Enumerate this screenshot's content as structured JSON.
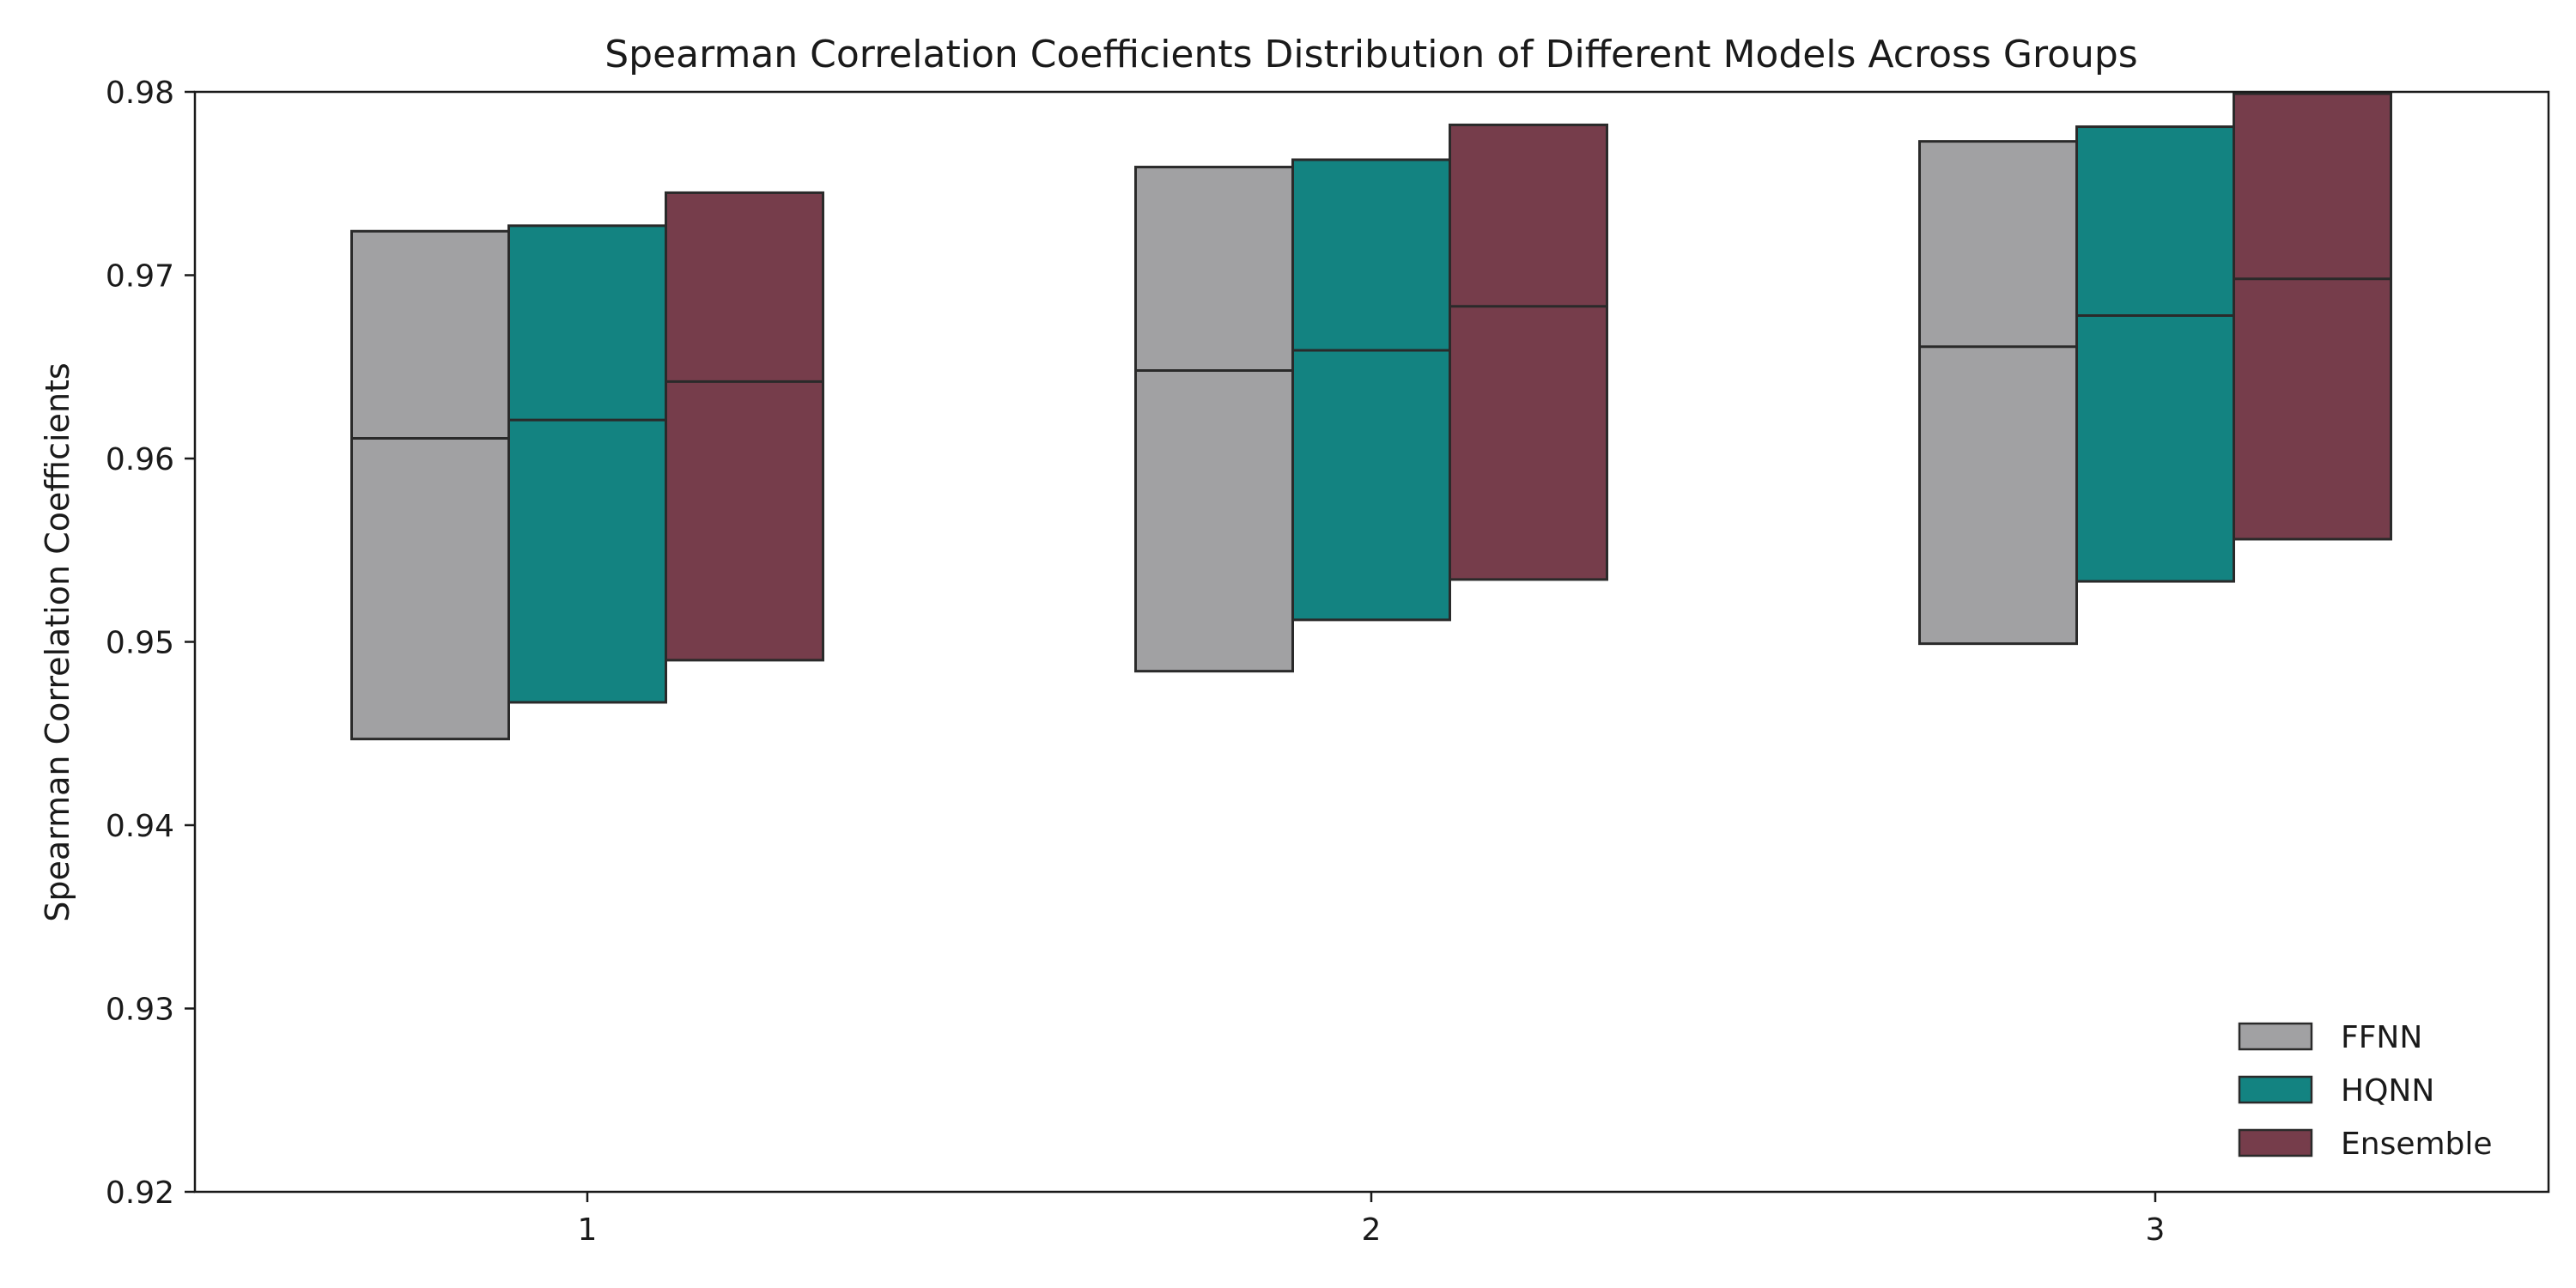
{
  "chart_data": {
    "type": "box",
    "title": "Spearman Correlation Coefficients Distribution of Different Models Across Groups",
    "xlabel": "",
    "ylabel": "Spearman Correlation Coefficients",
    "ylim": [
      0.92,
      0.98
    ],
    "yticks": [
      "0.92",
      "0.93",
      "0.94",
      "0.95",
      "0.96",
      "0.97",
      "0.98"
    ],
    "categories": [
      "1",
      "2",
      "3"
    ],
    "legend_position": "bottom-right",
    "grid": false,
    "series": [
      {
        "name": "FFNN",
        "color": "#a1a1a3",
        "boxes": [
          {
            "q1": 0.9447,
            "median": 0.9611,
            "q3": 0.9724
          },
          {
            "q1": 0.9484,
            "median": 0.9648,
            "q3": 0.9759
          },
          {
            "q1": 0.9499,
            "median": 0.9661,
            "q3": 0.9773
          }
        ]
      },
      {
        "name": "HQNN",
        "color": "#138381",
        "boxes": [
          {
            "q1": 0.9467,
            "median": 0.9621,
            "q3": 0.9727
          },
          {
            "q1": 0.9512,
            "median": 0.9659,
            "q3": 0.9763
          },
          {
            "q1": 0.9533,
            "median": 0.9678,
            "q3": 0.9781
          }
        ]
      },
      {
        "name": "Ensemble",
        "color": "#763d4b",
        "boxes": [
          {
            "q1": 0.949,
            "median": 0.9642,
            "q3": 0.9745
          },
          {
            "q1": 0.9534,
            "median": 0.9683,
            "q3": 0.9782
          },
          {
            "q1": 0.9556,
            "median": 0.9698,
            "q3": 0.9799
          }
        ]
      }
    ]
  }
}
